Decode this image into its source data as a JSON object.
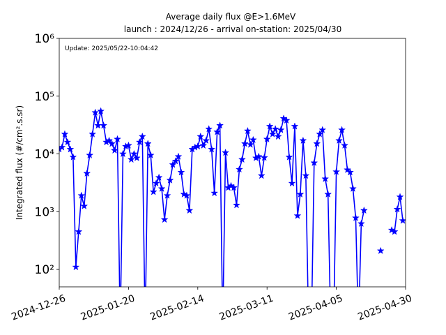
{
  "chart_data": {
    "type": "line",
    "title": "Average daily flux @E>1.6MeV",
    "subtitle": "launch : 2024/12/26 - arrival on-station: 2025/04/30",
    "annotation": "Update: 2025/05/22-10:04:42",
    "y_label": "Integrated flux (#/cm².s.sr)",
    "log_scale_y": true,
    "grid": false,
    "xlim": [
      "2024-12-26",
      "2025-04-30"
    ],
    "xticks": [
      "2024-12-26",
      "2025-01-20",
      "2025-02-14",
      "2025-03-11",
      "2025-04-05",
      "2025-04-30"
    ],
    "ylim": [
      50,
      1000000
    ],
    "yticks": [
      {
        "value": 100,
        "label": "10²"
      },
      {
        "value": 1000,
        "label": "10³"
      },
      {
        "value": 10000,
        "label": "10⁴"
      },
      {
        "value": 100000,
        "label": "10⁵"
      },
      {
        "value": 1000000,
        "label": "10⁶"
      }
    ],
    "x": [
      "2024-12-26",
      "2024-12-27",
      "2024-12-28",
      "2024-12-29",
      "2024-12-30",
      "2024-12-31",
      "2025-01-01",
      "2025-01-02",
      "2025-01-03",
      "2025-01-04",
      "2025-01-05",
      "2025-01-06",
      "2025-01-07",
      "2025-01-08",
      "2025-01-09",
      "2025-01-10",
      "2025-01-11",
      "2025-01-12",
      "2025-01-13",
      "2025-01-14",
      "2025-01-15",
      "2025-01-16",
      "2025-01-17",
      "2025-01-18",
      "2025-01-19",
      "2025-01-20",
      "2025-01-21",
      "2025-01-22",
      "2025-01-23",
      "2025-01-24",
      "2025-01-25",
      "2025-01-26",
      "2025-01-27",
      "2025-01-28",
      "2025-01-29",
      "2025-01-30",
      "2025-01-31",
      "2025-02-01",
      "2025-02-02",
      "2025-02-03",
      "2025-02-04",
      "2025-02-05",
      "2025-02-06",
      "2025-02-07",
      "2025-02-08",
      "2025-02-09",
      "2025-02-10",
      "2025-02-11",
      "2025-02-12",
      "2025-02-13",
      "2025-02-14",
      "2025-02-15",
      "2025-02-16",
      "2025-02-17",
      "2025-02-18",
      "2025-02-19",
      "2025-02-20",
      "2025-02-21",
      "2025-02-22",
      "2025-02-23",
      "2025-02-24",
      "2025-02-25",
      "2025-02-26",
      "2025-02-27",
      "2025-02-28",
      "2025-03-01",
      "2025-03-02",
      "2025-03-03",
      "2025-03-04",
      "2025-03-05",
      "2025-03-06",
      "2025-03-07",
      "2025-03-08",
      "2025-03-09",
      "2025-03-10",
      "2025-03-11",
      "2025-03-12",
      "2025-03-13",
      "2025-03-14",
      "2025-03-15",
      "2025-03-16",
      "2025-03-17",
      "2025-03-18",
      "2025-03-19",
      "2025-03-20",
      "2025-03-21",
      "2025-03-22",
      "2025-03-23",
      "2025-03-24",
      "2025-03-25",
      "2025-03-26",
      "2025-03-27",
      "2025-03-28",
      "2025-03-29",
      "2025-03-30",
      "2025-03-31",
      "2025-04-01",
      "2025-04-02",
      "2025-04-03",
      "2025-04-04",
      "2025-04-05",
      "2025-04-06",
      "2025-04-07",
      "2025-04-08",
      "2025-04-09",
      "2025-04-10",
      "2025-04-11",
      "2025-04-12",
      "2025-04-13",
      "2025-04-14",
      "2025-04-15",
      "2025-04-16",
      "2025-04-17",
      "2025-04-18",
      "2025-04-19",
      "2025-04-20",
      "2025-04-21",
      "2025-04-22",
      "2025-04-23",
      "2025-04-24",
      "2025-04-25",
      "2025-04-26",
      "2025-04-27",
      "2025-04-28",
      "2025-04-29"
    ],
    "series": [
      {
        "name": "flux",
        "color": "#0000ff",
        "values": [
          12000,
          13000,
          22000,
          16000,
          12000,
          8800,
          110,
          450,
          1900,
          1250,
          4600,
          9500,
          22000,
          52000,
          31000,
          55000,
          31000,
          16000,
          17000,
          15000,
          11500,
          18000,
          0,
          10000,
          13500,
          14000,
          8000,
          10000,
          8500,
          16000,
          20000,
          0,
          15000,
          9500,
          2200,
          3100,
          3900,
          2500,
          730,
          1900,
          3500,
          6500,
          7500,
          9000,
          4800,
          2000,
          1900,
          1050,
          12000,
          13000,
          13500,
          20000,
          14000,
          17000,
          27000,
          12000,
          2100,
          24000,
          31000,
          0,
          10500,
          2600,
          2800,
          2600,
          1300,
          5400,
          8000,
          15000,
          25000,
          14500,
          17500,
          8500,
          9000,
          4200,
          8600,
          18000,
          30000,
          22000,
          27000,
          20000,
          26000,
          41000,
          38000,
          8800,
          3100,
          30000,
          850,
          2000,
          17000,
          4200,
          0,
          0,
          7000,
          15000,
          22000,
          26000,
          3700,
          2000,
          0,
          0,
          4900,
          17000,
          26000,
          14000,
          5300,
          4800,
          2500,
          780,
          0,
          620,
          1050,
          null,
          null,
          null,
          null,
          null,
          210,
          null,
          null,
          null,
          480,
          450,
          1100,
          1800,
          700
        ]
      }
    ]
  }
}
